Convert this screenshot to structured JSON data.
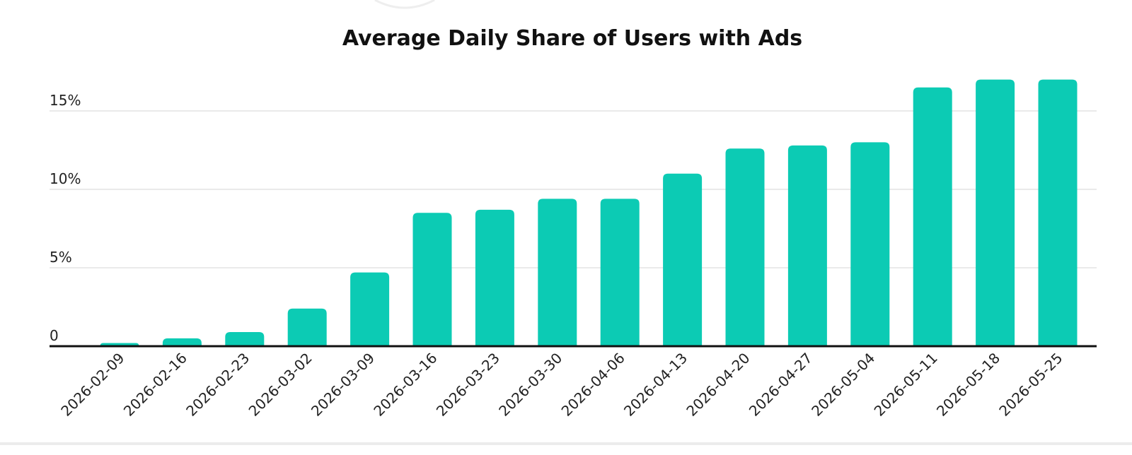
{
  "chart_data": {
    "type": "bar",
    "title": "Average Daily Share of Users with Ads",
    "xlabel": "",
    "ylabel": "",
    "categories": [
      "2026-02-09",
      "2026-02-16",
      "2026-02-23",
      "2026-03-02",
      "2026-03-09",
      "2026-03-16",
      "2026-03-23",
      "2026-03-30",
      "2026-04-06",
      "2026-04-13",
      "2026-04-20",
      "2026-04-27",
      "2026-05-04",
      "2026-05-11",
      "2026-05-18",
      "2026-05-25"
    ],
    "values": [
      0.2,
      0.5,
      0.9,
      2.4,
      4.7,
      8.5,
      8.7,
      9.4,
      9.4,
      11.0,
      12.6,
      12.8,
      13.0,
      16.5,
      17.0,
      17.0
    ],
    "unit": "%",
    "ylim": [
      0,
      17.5
    ],
    "yticks": [
      0,
      5,
      10,
      15
    ],
    "ytick_labels": [
      "0",
      "5%",
      "10%",
      "15%"
    ],
    "grid": true,
    "legend": "none",
    "colors": {
      "bar": "#0ccbb4",
      "grid": "#e4e4e4",
      "axis": "#111111",
      "text": "#222222"
    }
  }
}
